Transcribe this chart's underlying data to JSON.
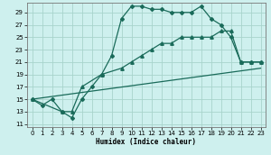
{
  "xlabel": "Humidex (Indice chaleur)",
  "bg_color": "#cef0ee",
  "grid_color": "#a8d4cc",
  "line_color": "#1a6b5a",
  "xlim": [
    -0.5,
    23.5
  ],
  "ylim": [
    10.5,
    30.5
  ],
  "xticks": [
    0,
    1,
    2,
    3,
    4,
    5,
    6,
    7,
    8,
    9,
    10,
    11,
    12,
    13,
    14,
    15,
    16,
    17,
    18,
    19,
    20,
    21,
    22,
    23
  ],
  "yticks": [
    11,
    13,
    15,
    17,
    19,
    21,
    23,
    25,
    27,
    29
  ],
  "curve1_x": [
    0,
    1,
    2,
    3,
    4,
    5,
    6,
    7,
    8,
    9,
    10,
    11,
    12,
    13,
    14,
    15,
    16,
    17,
    18,
    19,
    20,
    21,
    22,
    23
  ],
  "curve1_y": [
    15,
    14,
    15,
    13,
    12,
    15,
    17,
    19,
    22,
    28,
    30,
    30,
    29.5,
    29.5,
    29,
    29,
    29,
    30,
    28,
    27,
    25,
    21,
    21,
    21
  ],
  "curve2_x": [
    0,
    3,
    4,
    5,
    7,
    9,
    10,
    11,
    12,
    13,
    14,
    15,
    16,
    17,
    18,
    19,
    20,
    21,
    22,
    23
  ],
  "curve2_y": [
    15,
    13,
    13,
    17,
    19,
    20,
    21,
    22,
    23,
    24,
    24,
    25,
    25,
    25,
    25,
    26,
    26,
    21,
    21,
    21
  ],
  "curve3_x": [
    0,
    23
  ],
  "curve3_y": [
    15,
    20
  ]
}
